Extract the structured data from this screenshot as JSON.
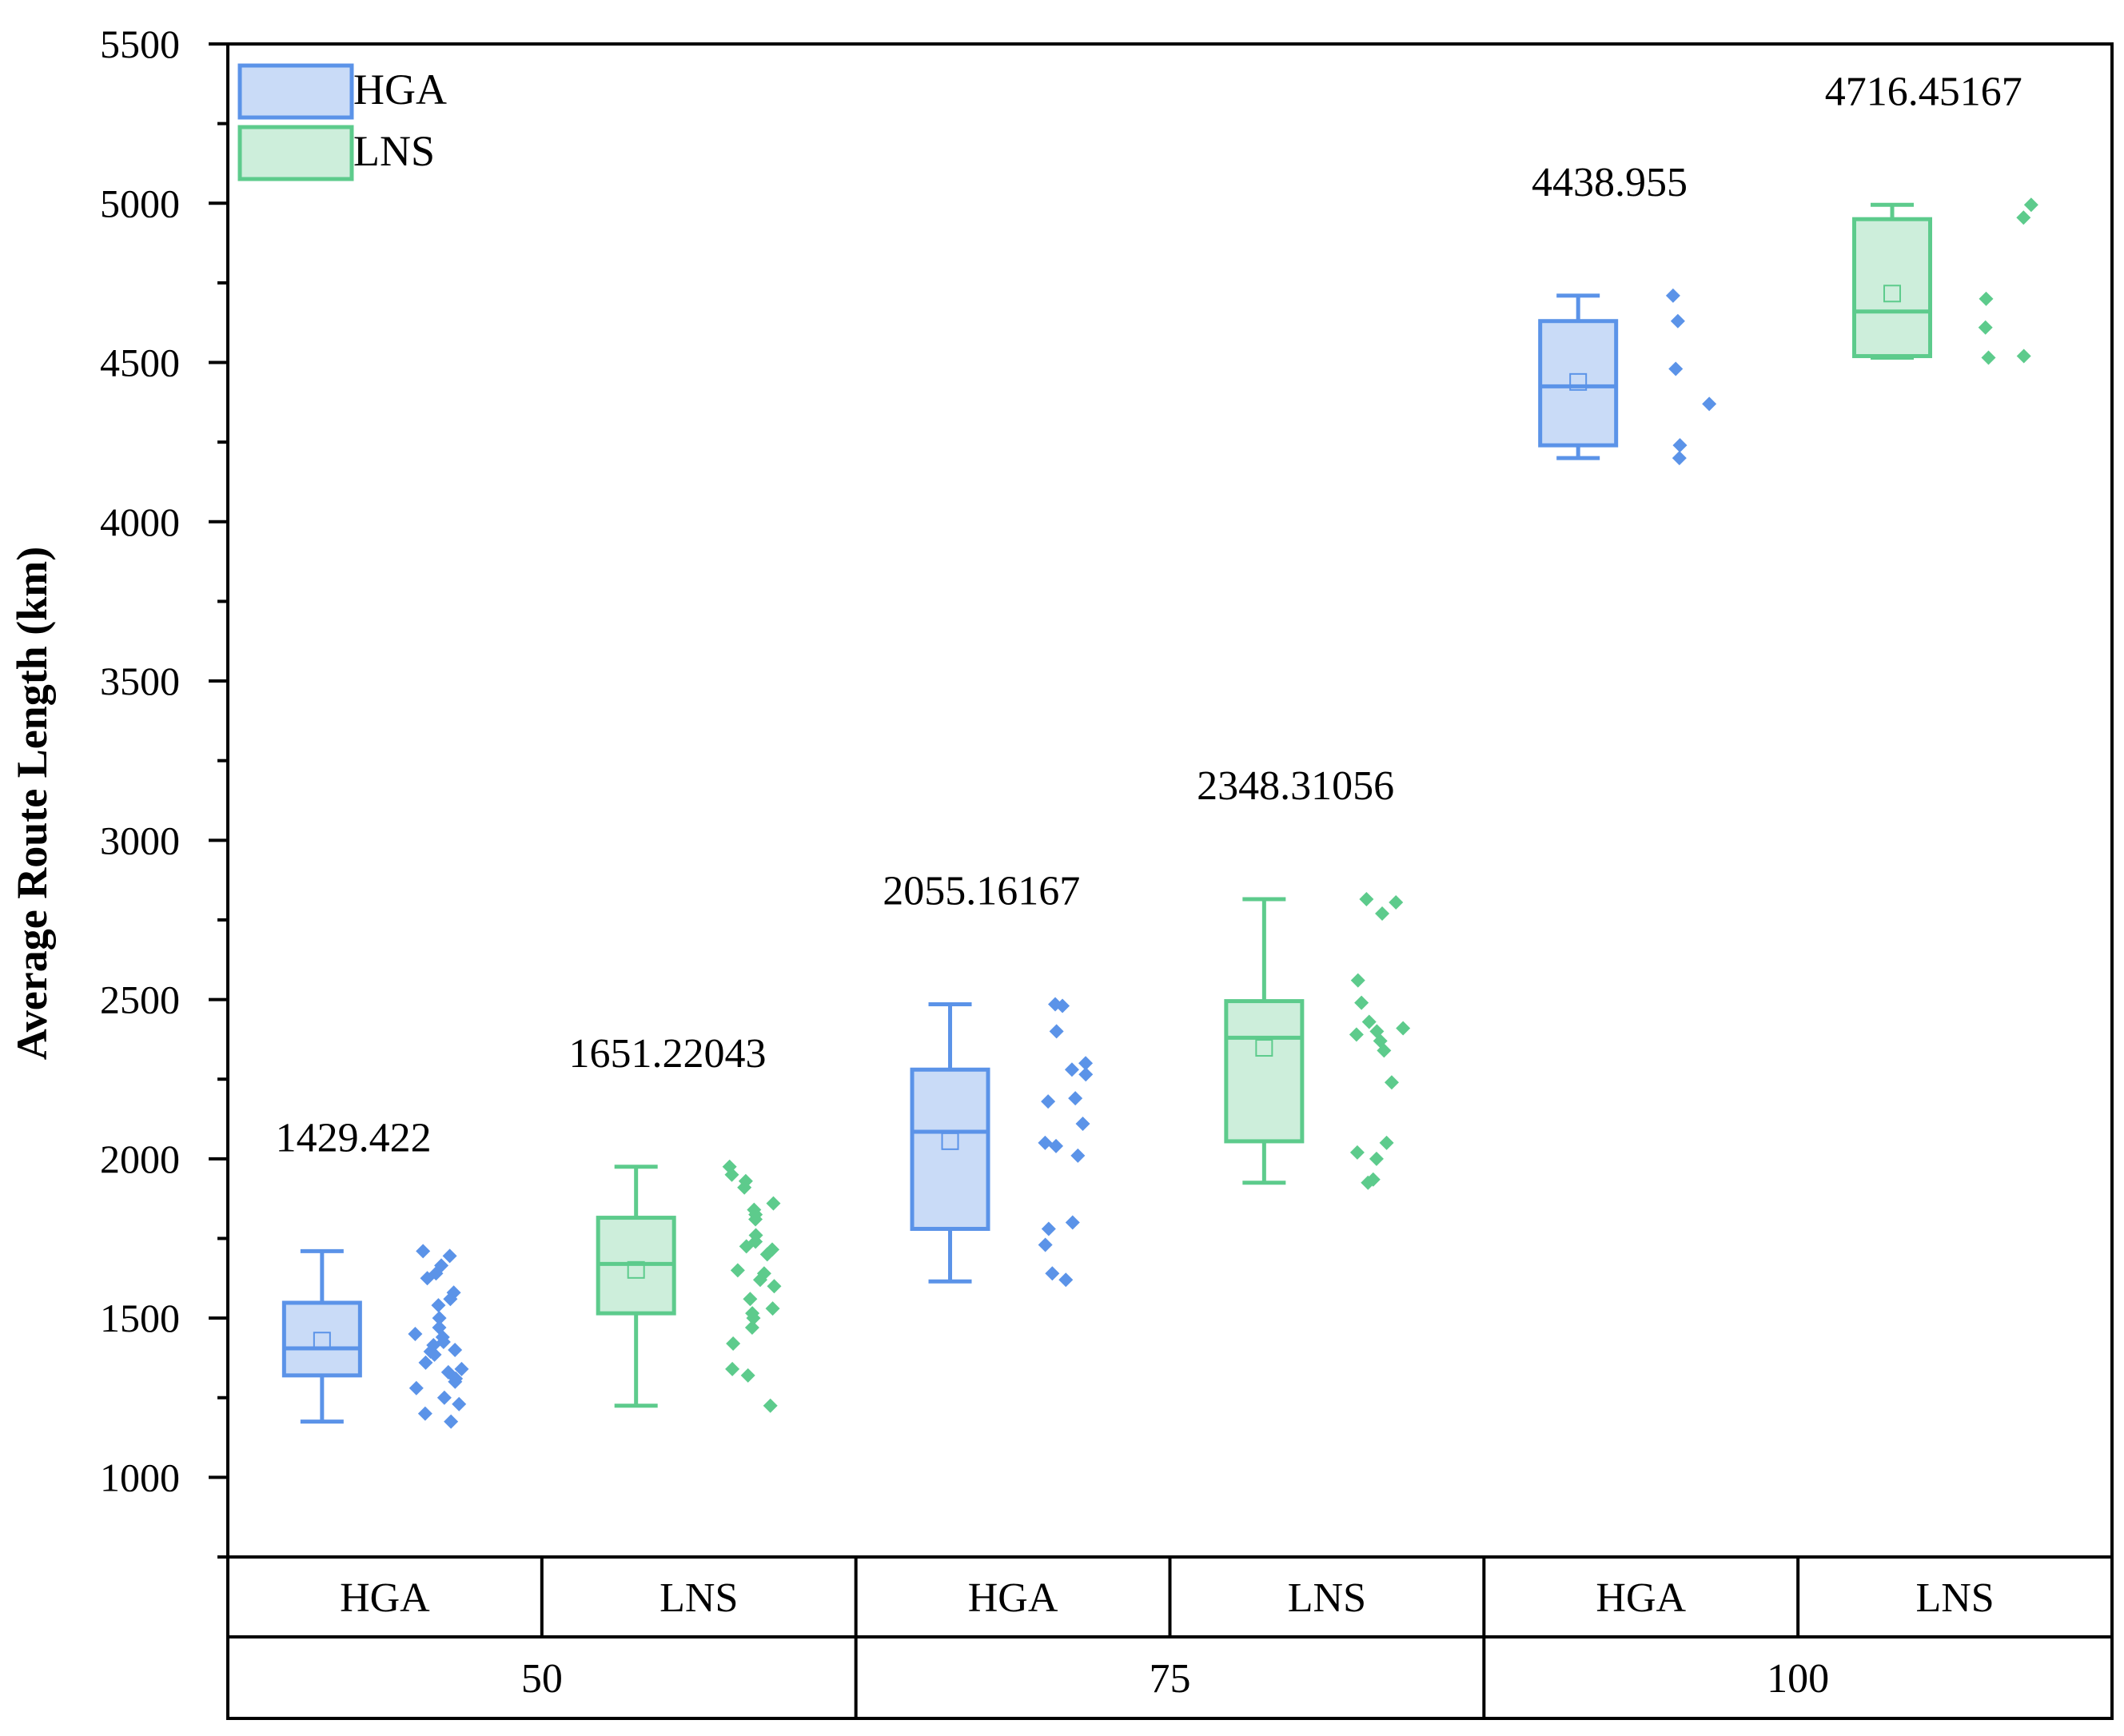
{
  "chart_data": {
    "type": "box",
    "ylabel": "Average Route Length (km)",
    "ylim": [
      750,
      5500
    ],
    "yticks": [
      1000,
      1500,
      2000,
      2500,
      3000,
      3500,
      4000,
      4500,
      5000,
      5500
    ],
    "colors": {
      "HGA": {
        "stroke": "#5b93e8",
        "fill": "#c9dbf7"
      },
      "LNS": {
        "stroke": "#5dcb8c",
        "fill": "#cdeedb"
      }
    },
    "legend": {
      "position": "top-left",
      "entries": [
        "HGA",
        "LNS"
      ]
    },
    "groups": [
      {
        "label": "50",
        "series": [
          {
            "name": "HGA",
            "mean": 1429.422,
            "mean_label": "1429.422",
            "whisker_low": 1175,
            "q1": 1320,
            "median": 1405,
            "q3": 1548,
            "whisker_high": 1710,
            "points": [
              1710,
              1695,
              1665,
              1640,
              1625,
              1580,
              1560,
              1540,
              1500,
              1470,
              1450,
              1440,
              1425,
              1415,
              1400,
              1395,
              1385,
              1360,
              1340,
              1330,
              1310,
              1300,
              1280,
              1250,
              1230,
              1200,
              1175
            ]
          },
          {
            "name": "LNS",
            "mean": 1651.22043,
            "mean_label": "1651.22043",
            "whisker_low": 1225,
            "q1": 1515,
            "median": 1670,
            "q3": 1815,
            "whisker_high": 1975,
            "points": [
              1975,
              1950,
              1930,
              1910,
              1860,
              1840,
              1825,
              1810,
              1760,
              1740,
              1725,
              1715,
              1700,
              1650,
              1640,
              1620,
              1600,
              1560,
              1530,
              1515,
              1500,
              1470,
              1420,
              1340,
              1320,
              1225
            ]
          }
        ]
      },
      {
        "label": "75",
        "series": [
          {
            "name": "HGA",
            "mean": 2055.16167,
            "mean_label": "2055.16167",
            "whisker_low": 1615,
            "q1": 1780,
            "median": 2085,
            "q3": 2280,
            "whisker_high": 2485,
            "points": [
              2485,
              2480,
              2400,
              2300,
              2280,
              2265,
              2190,
              2180,
              2110,
              2050,
              2040,
              2010,
              1800,
              1780,
              1730,
              1640,
              1620
            ]
          },
          {
            "name": "LNS",
            "mean": 2348.31056,
            "mean_label": "2348.31056",
            "whisker_low": 1925,
            "q1": 2055,
            "median": 2380,
            "q3": 2495,
            "whisker_high": 2815,
            "points": [
              2815,
              2805,
              2770,
              2560,
              2490,
              2430,
              2410,
              2400,
              2390,
              2370,
              2340,
              2240,
              2050,
              2020,
              2000,
              1935,
              1925
            ]
          }
        ]
      },
      {
        "label": "100",
        "series": [
          {
            "name": "HGA",
            "mean": 4438.955,
            "mean_label": "4438.955",
            "whisker_low": 4200,
            "q1": 4240,
            "median": 4425,
            "q3": 4630,
            "whisker_high": 4710,
            "points": [
              4710,
              4630,
              4480,
              4370,
              4240,
              4200
            ]
          },
          {
            "name": "LNS",
            "mean": 4716.45167,
            "mean_label": "4716.45167",
            "whisker_low": 4515,
            "q1": 4520,
            "median": 4660,
            "q3": 4950,
            "whisker_high": 4995,
            "points": [
              4995,
              4955,
              4700,
              4610,
              4520,
              4515
            ]
          }
        ]
      }
    ]
  }
}
